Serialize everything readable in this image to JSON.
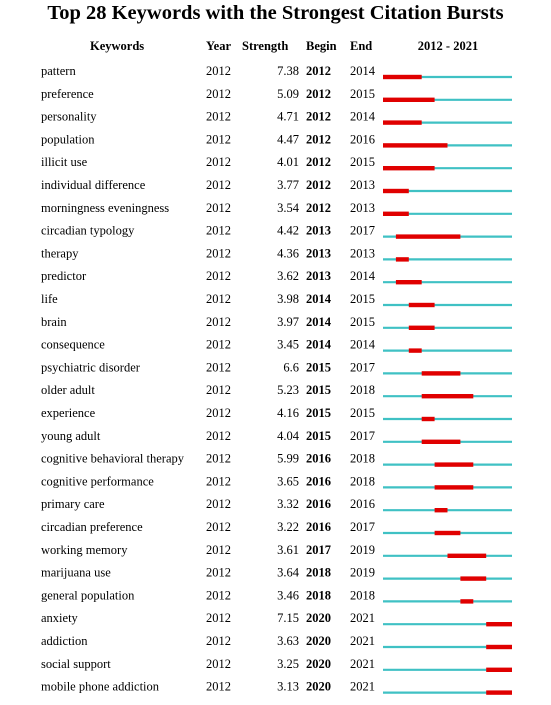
{
  "chart_data": {
    "type": "table",
    "title": "Top 28 Keywords with the Strongest Citation Bursts",
    "columns": [
      "Keywords",
      "Year",
      "Strength",
      "Begin",
      "End",
      "2012 - 2021"
    ],
    "timeline": {
      "start": 2012,
      "end": 2021,
      "label": "2012 - 2021"
    },
    "colors": {
      "baseline": "#3fc1c4",
      "burst": "#e00000"
    },
    "rows": [
      {
        "keyword": "pattern",
        "year": "2012",
        "strength": "7.38",
        "begin": "2012",
        "end": "2014"
      },
      {
        "keyword": "preference",
        "year": "2012",
        "strength": "5.09",
        "begin": "2012",
        "end": "2015"
      },
      {
        "keyword": "personality",
        "year": "2012",
        "strength": "4.71",
        "begin": "2012",
        "end": "2014"
      },
      {
        "keyword": "population",
        "year": "2012",
        "strength": "4.47",
        "begin": "2012",
        "end": "2016"
      },
      {
        "keyword": "illicit use",
        "year": "2012",
        "strength": "4.01",
        "begin": "2012",
        "end": "2015"
      },
      {
        "keyword": "individual difference",
        "year": "2012",
        "strength": "3.77",
        "begin": "2012",
        "end": "2013"
      },
      {
        "keyword": "morningness eveningness",
        "year": "2012",
        "strength": "3.54",
        "begin": "2012",
        "end": "2013"
      },
      {
        "keyword": "circadian typology",
        "year": "2012",
        "strength": "4.42",
        "begin": "2013",
        "end": "2017"
      },
      {
        "keyword": "therapy",
        "year": "2012",
        "strength": "4.36",
        "begin": "2013",
        "end": "2013"
      },
      {
        "keyword": "predictor",
        "year": "2012",
        "strength": "3.62",
        "begin": "2013",
        "end": "2014"
      },
      {
        "keyword": "life",
        "year": "2012",
        "strength": "3.98",
        "begin": "2014",
        "end": "2015"
      },
      {
        "keyword": "brain",
        "year": "2012",
        "strength": "3.97",
        "begin": "2014",
        "end": "2015"
      },
      {
        "keyword": "consequence",
        "year": "2012",
        "strength": "3.45",
        "begin": "2014",
        "end": "2014"
      },
      {
        "keyword": "psychiatric disorder",
        "year": "2012",
        "strength": "6.6",
        "begin": "2015",
        "end": "2017"
      },
      {
        "keyword": "older adult",
        "year": "2012",
        "strength": "5.23",
        "begin": "2015",
        "end": "2018"
      },
      {
        "keyword": "experience",
        "year": "2012",
        "strength": "4.16",
        "begin": "2015",
        "end": "2015"
      },
      {
        "keyword": "young adult",
        "year": "2012",
        "strength": "4.04",
        "begin": "2015",
        "end": "2017"
      },
      {
        "keyword": "cognitive behavioral therapy",
        "year": "2012",
        "strength": "5.99",
        "begin": "2016",
        "end": "2018"
      },
      {
        "keyword": "cognitive performance",
        "year": "2012",
        "strength": "3.65",
        "begin": "2016",
        "end": "2018"
      },
      {
        "keyword": "primary care",
        "year": "2012",
        "strength": "3.32",
        "begin": "2016",
        "end": "2016"
      },
      {
        "keyword": "circadian preference",
        "year": "2012",
        "strength": "3.22",
        "begin": "2016",
        "end": "2017"
      },
      {
        "keyword": "working memory",
        "year": "2012",
        "strength": "3.61",
        "begin": "2017",
        "end": "2019"
      },
      {
        "keyword": "marijuana use",
        "year": "2012",
        "strength": "3.64",
        "begin": "2018",
        "end": "2019"
      },
      {
        "keyword": "general population",
        "year": "2012",
        "strength": "3.46",
        "begin": "2018",
        "end": "2018"
      },
      {
        "keyword": "anxiety",
        "year": "2012",
        "strength": "7.15",
        "begin": "2020",
        "end": "2021"
      },
      {
        "keyword": "addiction",
        "year": "2012",
        "strength": "3.63",
        "begin": "2020",
        "end": "2021"
      },
      {
        "keyword": "social support",
        "year": "2012",
        "strength": "3.25",
        "begin": "2020",
        "end": "2021"
      },
      {
        "keyword": "mobile phone addiction",
        "year": "2012",
        "strength": "3.13",
        "begin": "2020",
        "end": "2021"
      }
    ]
  }
}
